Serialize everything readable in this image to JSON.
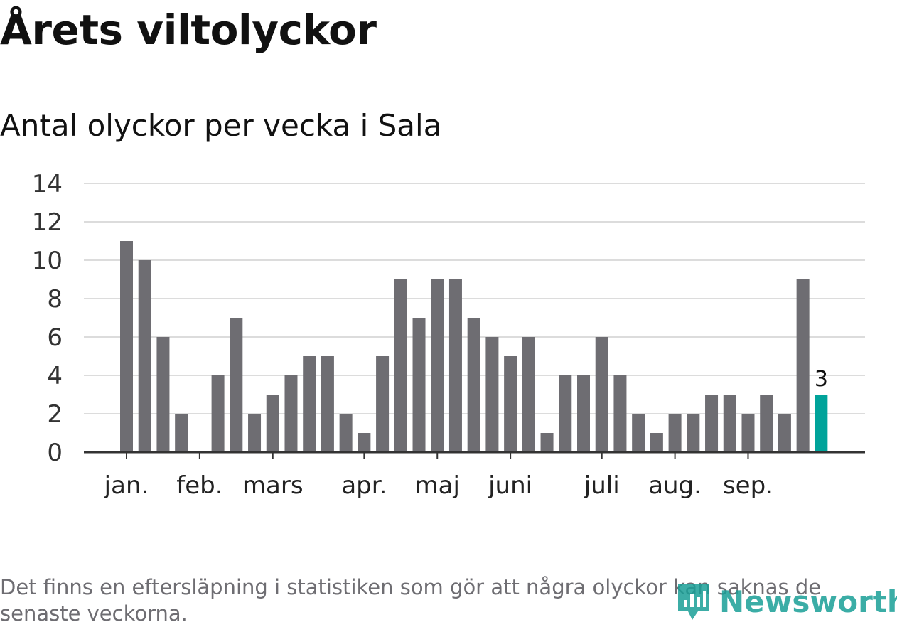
{
  "title": "Årets viltolyckor",
  "subtitle": "Antal olyckor per vecka i Sala",
  "footnote": "Det finns en eftersläpning i statistiken som gör att några olyckor kan saknas de senaste veckorna.",
  "brand": {
    "name": "Newsworthy",
    "color": "#1a9f97"
  },
  "colors": {
    "bar": "#6e6d72",
    "highlight": "#00a39a",
    "grid": "#dcdcdc",
    "axis": "#333333"
  },
  "chart_data": {
    "type": "bar",
    "title": "Antal olyckor per vecka i Sala",
    "xlabel": "",
    "ylabel": "",
    "ylim": [
      0,
      14
    ],
    "yticks": [
      0,
      2,
      4,
      6,
      8,
      10,
      12,
      14
    ],
    "grid": true,
    "weeks": [
      1,
      2,
      3,
      4,
      5,
      6,
      7,
      8,
      9,
      10,
      11,
      12,
      13,
      14,
      15,
      16,
      17,
      18,
      19,
      20,
      21,
      22,
      23,
      24,
      25,
      26,
      27,
      28,
      29,
      30,
      31,
      32,
      33,
      34,
      35,
      36,
      37,
      38,
      39
    ],
    "values": [
      11,
      10,
      6,
      2,
      0,
      4,
      7,
      2,
      3,
      4,
      5,
      5,
      2,
      1,
      5,
      9,
      7,
      9,
      9,
      7,
      6,
      5,
      6,
      1,
      4,
      4,
      6,
      4,
      2,
      1,
      2,
      2,
      3,
      3,
      2,
      3,
      2,
      9,
      3
    ],
    "highlight_last": true,
    "highlight_label": "3",
    "month_labels": [
      {
        "label": "jan.",
        "week": 1
      },
      {
        "label": "feb.",
        "week": 5
      },
      {
        "label": "mars",
        "week": 9
      },
      {
        "label": "apr.",
        "week": 14
      },
      {
        "label": "maj",
        "week": 18
      },
      {
        "label": "juni",
        "week": 22
      },
      {
        "label": "juli",
        "week": 27
      },
      {
        "label": "aug.",
        "week": 31
      },
      {
        "label": "sep.",
        "week": 35
      }
    ]
  }
}
